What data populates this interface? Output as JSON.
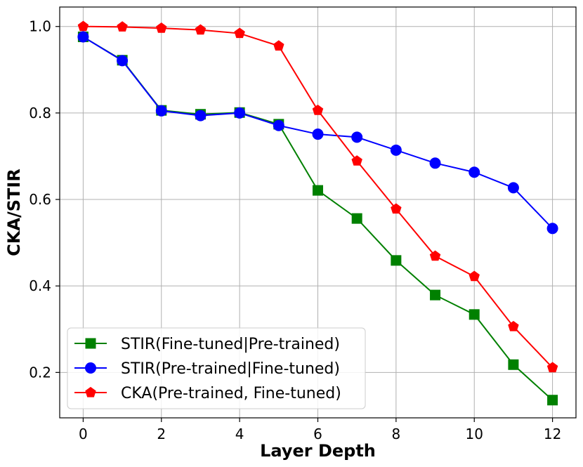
{
  "chart_data": {
    "type": "line",
    "title": "",
    "xlabel": "Layer Depth",
    "ylabel": "CKA/STIR",
    "xlim": [
      -0.6,
      12.6
    ],
    "ylim": [
      0.095,
      1.045
    ],
    "xticks": [
      0,
      2,
      4,
      6,
      8,
      10,
      12
    ],
    "yticks": [
      0.2,
      0.4,
      0.6,
      0.8,
      1.0
    ],
    "ytick_labels": [
      "0.2",
      "0.4",
      "0.6",
      "0.8",
      "1.0"
    ],
    "grid": true,
    "legend_position": "lower-left",
    "x": [
      0,
      1,
      2,
      3,
      4,
      5,
      6,
      7,
      8,
      9,
      10,
      11,
      12
    ],
    "series": [
      {
        "name": "STIR(Fine-tuned|Pre-trained)",
        "color": "#008000",
        "marker": "square",
        "values": [
          0.976,
          0.922,
          0.806,
          0.797,
          0.801,
          0.774,
          0.621,
          0.556,
          0.459,
          0.379,
          0.334,
          0.218,
          0.136
        ]
      },
      {
        "name": "STIR(Pre-trained|Fine-tuned)",
        "color": "#0000ff",
        "marker": "circle",
        "values": [
          0.976,
          0.921,
          0.805,
          0.794,
          0.8,
          0.771,
          0.751,
          0.744,
          0.714,
          0.684,
          0.663,
          0.627,
          0.533
        ]
      },
      {
        "name": "CKA(Pre-trained, Fine-tuned)",
        "color": "#ff0000",
        "marker": "pentagon",
        "values": [
          1.0,
          0.999,
          0.996,
          0.992,
          0.984,
          0.955,
          0.806,
          0.689,
          0.578,
          0.469,
          0.422,
          0.306,
          0.211
        ]
      }
    ]
  }
}
